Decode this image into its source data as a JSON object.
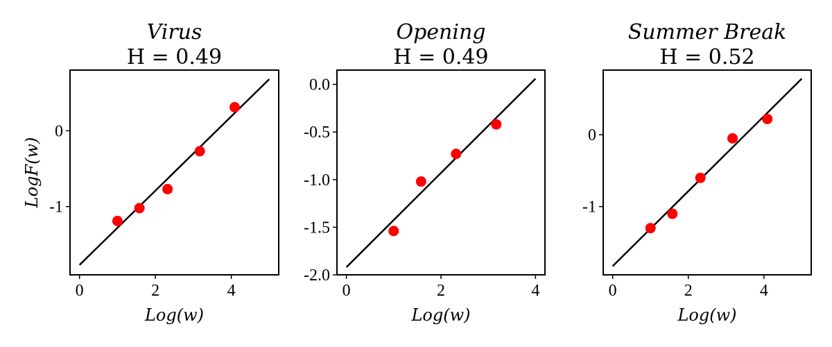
{
  "chart_data": [
    {
      "type": "scatter",
      "title": "Virus",
      "subtitle": "H = 0.49",
      "xlabel": "Log(w)",
      "ylabel": "LogF(w)",
      "xlim": [
        -0.25,
        5.25
      ],
      "ylim": [
        -1.9,
        0.8
      ],
      "xticks": [
        0,
        2,
        4
      ],
      "xtick_labels": [
        "0",
        "2",
        "4"
      ],
      "yticks": [
        0,
        -1
      ],
      "ytick_labels": [
        "0",
        "-1"
      ],
      "grid": false,
      "points": {
        "x": [
          1.0,
          1.58,
          2.32,
          3.17,
          4.09
        ],
        "y": [
          -1.19,
          -1.02,
          -0.77,
          -0.27,
          0.31
        ]
      },
      "fit_line": {
        "x": [
          0,
          5
        ],
        "y": [
          -1.77,
          0.68
        ]
      },
      "colors": {
        "points": "#ff0000",
        "line": "#000000"
      }
    },
    {
      "type": "scatter",
      "title": "Opening",
      "subtitle": "H = 0.49",
      "xlabel": "Log(w)",
      "ylabel": "",
      "xlim": [
        -0.2,
        4.2
      ],
      "ylim": [
        -2.0,
        0.15
      ],
      "xticks": [
        0,
        2,
        4
      ],
      "xtick_labels": [
        "0",
        "2",
        "4"
      ],
      "yticks": [
        0.0,
        -0.5,
        -1.0,
        -1.5,
        -2.0
      ],
      "ytick_labels": [
        "0.0",
        "-0.5",
        "-1.0",
        "-1.5",
        "-2.0"
      ],
      "grid": false,
      "points": {
        "x": [
          1.0,
          1.58,
          2.32,
          3.17
        ],
        "y": [
          -1.54,
          -1.02,
          -0.73,
          -0.42
        ]
      },
      "fit_line": {
        "x": [
          0,
          4
        ],
        "y": [
          -1.92,
          0.06
        ]
      },
      "colors": {
        "points": "#ff0000",
        "line": "#000000"
      }
    },
    {
      "type": "scatter",
      "title": "Summer Break",
      "subtitle": "H = 0.52",
      "xlabel": "Log(w)",
      "ylabel": "",
      "xlim": [
        -0.25,
        5.25
      ],
      "ylim": [
        -1.95,
        0.9
      ],
      "xticks": [
        0,
        2,
        4
      ],
      "xtick_labels": [
        "0",
        "2",
        "4"
      ],
      "yticks": [
        0,
        -1
      ],
      "ytick_labels": [
        "0",
        "-1"
      ],
      "grid": false,
      "points": {
        "x": [
          1.0,
          1.58,
          2.32,
          3.17,
          4.09
        ],
        "y": [
          -1.3,
          -1.1,
          -0.6,
          -0.05,
          0.22
        ]
      },
      "fit_line": {
        "x": [
          0,
          5
        ],
        "y": [
          -1.83,
          0.78
        ]
      },
      "colors": {
        "points": "#ff0000",
        "line": "#000000"
      }
    }
  ]
}
